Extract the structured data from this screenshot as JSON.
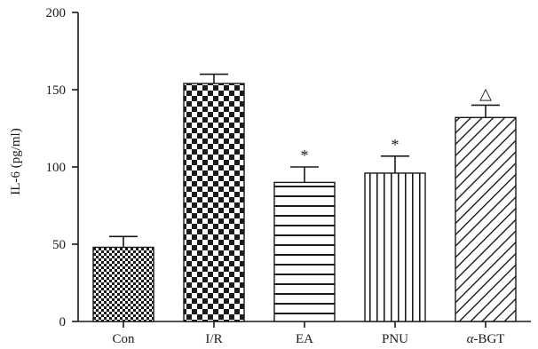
{
  "chart_data": {
    "type": "bar",
    "title": "",
    "xlabel": "",
    "ylabel": "IL-6 (pg/ml)",
    "ylim": [
      0,
      200
    ],
    "yticks": [
      0,
      50,
      100,
      150,
      200
    ],
    "categories": [
      "Con",
      "I/R",
      "EA",
      "PNU",
      "α-BGT"
    ],
    "values": [
      48,
      154,
      90,
      96,
      132
    ],
    "error_upper": [
      55,
      160,
      100,
      107,
      140
    ],
    "annotations": [
      "",
      "",
      "*",
      "*",
      "△"
    ],
    "patterns": [
      "fine-checker",
      "large-checker",
      "horizontal-lines",
      "vertical-lines",
      "diagonal-hatch"
    ],
    "grid": false,
    "legend": "none",
    "colors": {
      "ink": "#1a1a1a",
      "background": "#ffffff"
    }
  }
}
